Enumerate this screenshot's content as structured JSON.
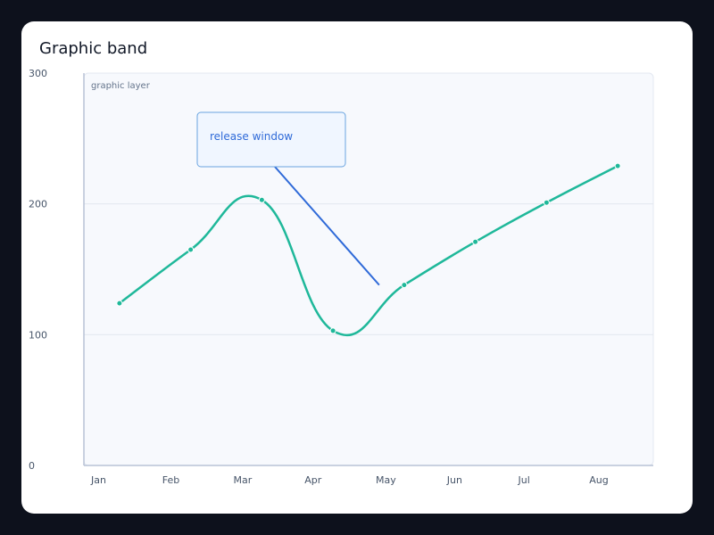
{
  "chart_data": {
    "type": "line",
    "title": "Graphic band",
    "categories": [
      "Jan",
      "Feb",
      "Mar",
      "Apr",
      "May",
      "Jun",
      "Jul",
      "Aug"
    ],
    "series": [
      {
        "values": [
          124,
          165,
          203,
          103,
          138,
          171,
          201,
          229
        ]
      }
    ],
    "yticks": [
      0,
      100,
      200,
      300
    ],
    "ylim": [
      0,
      300
    ],
    "grid": true,
    "line_color": "#1fb89a",
    "band": {
      "label": "graphic layer",
      "fill": "#f7f9fd"
    },
    "annotation": {
      "text": "release window",
      "x": "May",
      "y": 138,
      "color": "#2f6ad8"
    }
  }
}
